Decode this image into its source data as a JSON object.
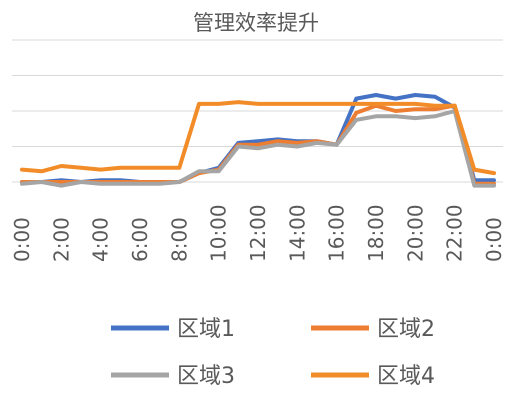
{
  "chart_data": {
    "type": "line",
    "title": "管理效率提升",
    "xlabel": "",
    "ylabel": "",
    "grid": true,
    "y_axis_labels_visible": false,
    "legend_position": "bottom",
    "x_tick_labels": [
      "0:00",
      "2:00",
      "4:00",
      "6:00",
      "8:00",
      "10:00",
      "12:00",
      "14:00",
      "16:00",
      "18:00",
      "20:00",
      "22:00",
      "0:00"
    ],
    "x": [
      "0:00",
      "1:00",
      "2:00",
      "3:00",
      "4:00",
      "5:00",
      "6:00",
      "7:00",
      "8:00",
      "9:00",
      "10:00",
      "11:00",
      "12:00",
      "13:00",
      "14:00",
      "15:00",
      "16:00",
      "17:00",
      "18:00",
      "19:00",
      "20:00",
      "21:00",
      "22:00",
      "23:00",
      "0:00"
    ],
    "ylim": [
      0,
      4
    ],
    "series": [
      {
        "name": "区域1",
        "color": "#4472C4",
        "values": [
          0.0,
          0.0,
          0.05,
          0.0,
          0.05,
          0.05,
          0.0,
          0.0,
          0.0,
          0.25,
          0.4,
          1.1,
          1.15,
          1.2,
          1.15,
          1.15,
          1.05,
          2.35,
          2.45,
          2.35,
          2.45,
          2.4,
          2.1,
          0.05,
          0.05
        ]
      },
      {
        "name": "区域2",
        "color": "#ED7D31",
        "values": [
          0.0,
          0.0,
          0.0,
          0.0,
          0.0,
          0.0,
          0.0,
          0.0,
          0.0,
          0.25,
          0.35,
          1.05,
          1.05,
          1.15,
          1.1,
          1.15,
          1.05,
          1.95,
          2.15,
          2.0,
          2.05,
          2.05,
          2.15,
          -0.05,
          -0.05
        ]
      },
      {
        "name": "区域3",
        "color": "#A5A5A5",
        "values": [
          -0.05,
          0.0,
          -0.1,
          0.0,
          -0.05,
          -0.05,
          -0.05,
          -0.05,
          0.0,
          0.3,
          0.3,
          1.0,
          0.95,
          1.05,
          1.0,
          1.1,
          1.05,
          1.75,
          1.85,
          1.85,
          1.8,
          1.85,
          2.0,
          -0.1,
          -0.1
        ]
      },
      {
        "name": "区域4",
        "color": "#F28C28",
        "values": [
          0.35,
          0.3,
          0.45,
          0.4,
          0.35,
          0.4,
          0.4,
          0.4,
          0.4,
          2.2,
          2.2,
          2.25,
          2.2,
          2.2,
          2.2,
          2.2,
          2.2,
          2.2,
          2.2,
          2.2,
          2.2,
          2.15,
          2.15,
          0.35,
          0.25
        ]
      }
    ]
  }
}
